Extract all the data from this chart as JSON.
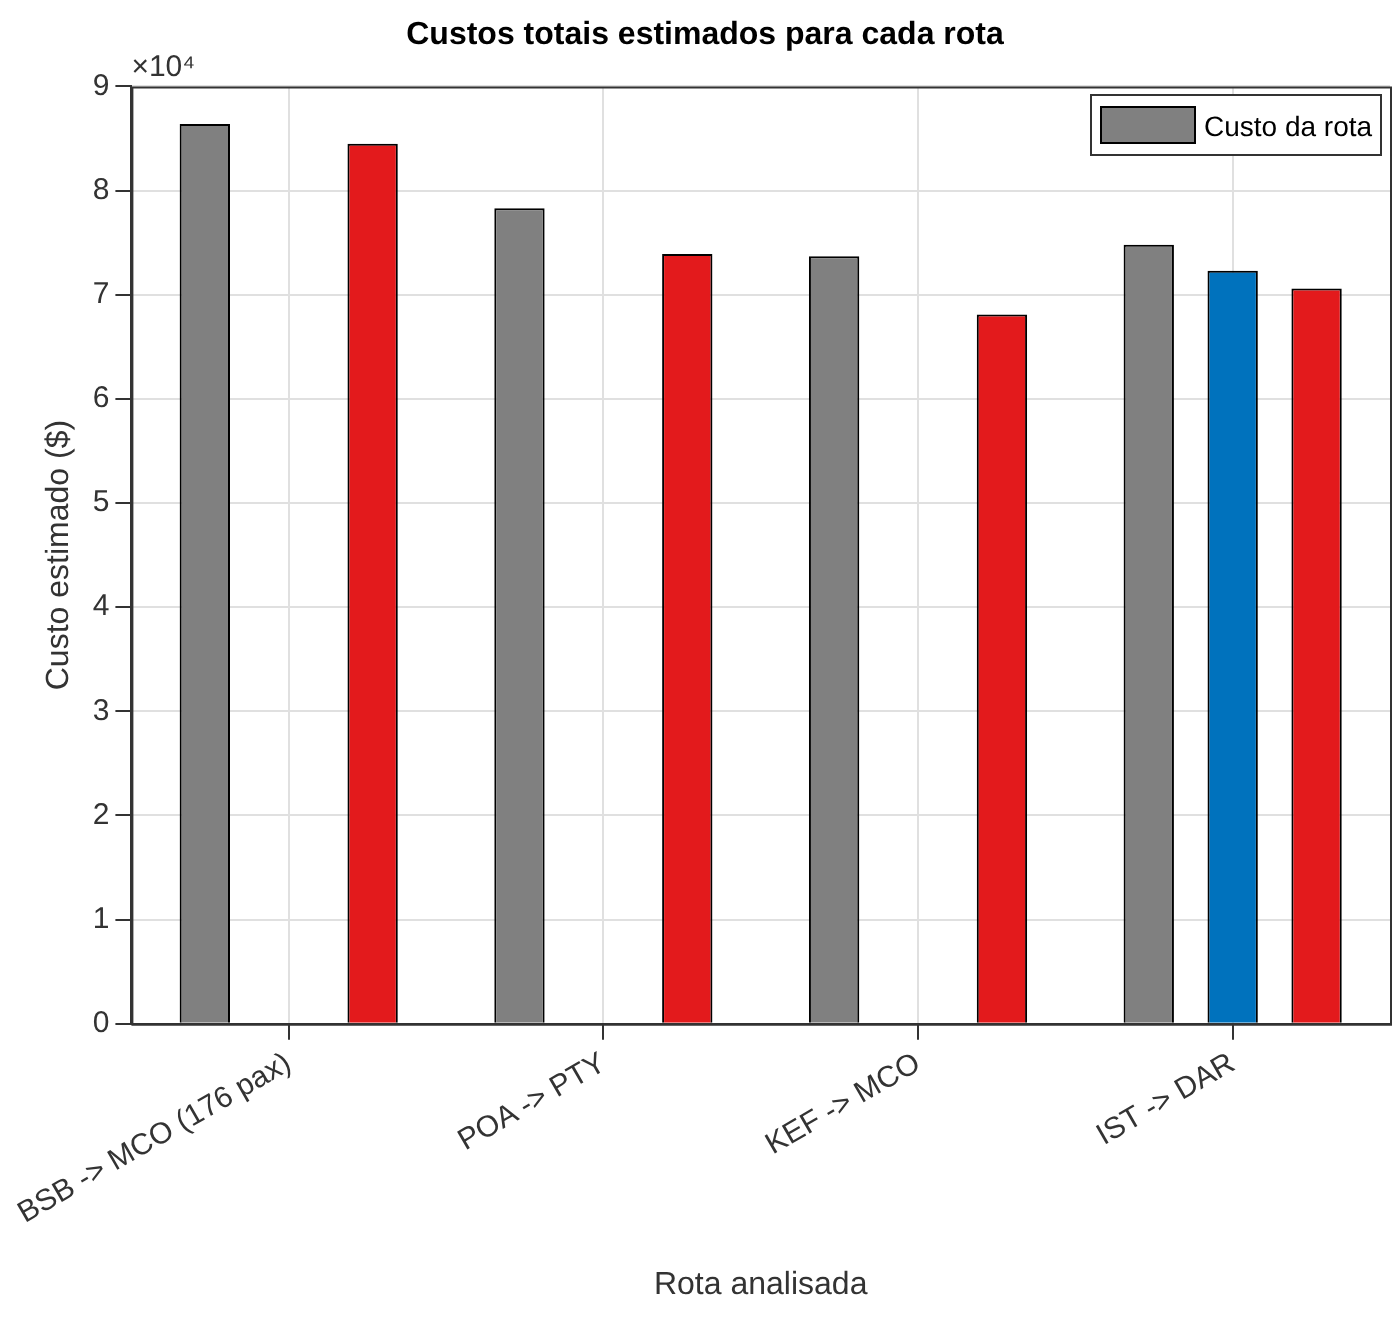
{
  "chart_data": {
    "type": "bar",
    "title": "Custos totais estimados para cada rota",
    "xlabel": "Rota analisada",
    "ylabel": "Custo estimado ($)",
    "categories": [
      "BSB -> MCO (176 pax)",
      "POA -> PTY",
      "KEF -> MCO",
      "IST -> DAR"
    ],
    "series": [
      {
        "name": "Custo da rota",
        "color": "#808080",
        "values": [
          8.64,
          7.83,
          7.37,
          7.48
        ]
      },
      {
        "color": "#0072bd",
        "values": [
          null,
          null,
          null,
          7.23
        ]
      },
      {
        "color": "#e31a1c",
        "values": [
          8.45,
          7.39,
          6.81,
          7.06
        ]
      }
    ],
    "ylim": [
      0,
      9
    ],
    "yticks": [
      0,
      1,
      2,
      3,
      4,
      5,
      6,
      7,
      8,
      9
    ],
    "annotations": [
      "×10⁴"
    ],
    "grid": true,
    "legend": "top right"
  }
}
